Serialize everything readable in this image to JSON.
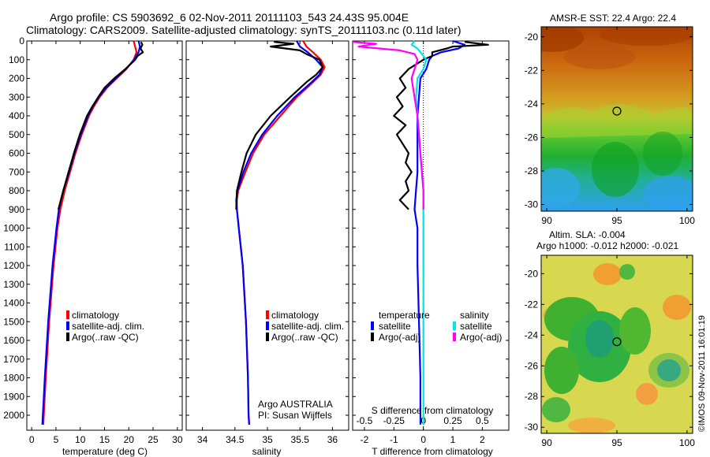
{
  "header": {
    "title_line1": "Argo profile: CS 5903692_6 02-Nov-2011 20111103_543 24.43S 95.004E",
    "title_line2": "Climatology: CARS2009. Satellite-adjusted climatology: synTS_20111103.nc (0.11d later)"
  },
  "footer": {
    "credit": "©IMOS 09-Nov-2011 16:01:19",
    "float_info": "Argo AUSTRALIA",
    "pi_info": "PI: Susan Wijffels"
  },
  "colors": {
    "climatology": "#ff0000",
    "satellite": "#0000ff",
    "argo": "#000000",
    "sal_satellite": "#00e5e5",
    "sal_argo": "#ff00ff"
  },
  "chart_data": [
    {
      "id": "temperature",
      "type": "line",
      "xlabel": "temperature (deg C)",
      "ylabel": "",
      "xlim": [
        -1,
        31
      ],
      "ylim": [
        2080,
        0
      ],
      "xticks": [
        "0",
        "5",
        "10",
        "15",
        "20",
        "25",
        "30"
      ],
      "xtick_values": [
        0,
        5,
        10,
        15,
        20,
        25,
        30
      ],
      "yticks": [
        0,
        100,
        200,
        300,
        400,
        500,
        600,
        700,
        800,
        900,
        1000,
        1100,
        1200,
        1300,
        1400,
        1500,
        1600,
        1700,
        1800,
        1900,
        2000
      ],
      "legend": {
        "placement": "lower-center",
        "entries": [
          "climatology",
          "satellite-adj. clim.",
          "Argo(..raw -QC)"
        ]
      },
      "series": [
        {
          "name": "climatology",
          "color": "#ff0000",
          "depth": [
            0,
            30,
            60,
            100,
            150,
            200,
            250,
            300,
            350,
            400,
            500,
            600,
            700,
            800,
            900,
            1000,
            1200,
            1500,
            1800,
            2000,
            2050
          ],
          "values": [
            21.0,
            21.3,
            21.6,
            21.0,
            19.5,
            17.5,
            15.5,
            14.0,
            12.8,
            11.8,
            10.3,
            9.0,
            7.9,
            6.8,
            5.9,
            5.3,
            4.5,
            3.6,
            2.9,
            2.5,
            2.4
          ]
        },
        {
          "name": "satellite-adj. clim.",
          "color": "#0000ff",
          "depth": [
            0,
            30,
            60,
            100,
            150,
            200,
            250,
            300,
            350,
            400,
            500,
            600,
            700,
            800,
            900,
            1000,
            1200,
            1500,
            1800,
            2000,
            2050
          ],
          "values": [
            22.0,
            22.3,
            22.0,
            21.1,
            19.4,
            17.3,
            15.3,
            13.8,
            12.6,
            11.6,
            10.1,
            8.8,
            7.7,
            6.5,
            5.6,
            5.1,
            4.3,
            3.4,
            2.7,
            2.3,
            2.2
          ]
        },
        {
          "name": "Argo(..raw -QC)",
          "color": "#000000",
          "depth": [
            5,
            20,
            40,
            60,
            80,
            100,
            150,
            200,
            250,
            300,
            350,
            400,
            500,
            600,
            700,
            800,
            900
          ],
          "values": [
            22.5,
            22.8,
            22.4,
            22.9,
            21.8,
            21.3,
            19.3,
            17.0,
            15.0,
            13.7,
            12.5,
            11.4,
            9.9,
            8.7,
            7.6,
            6.5,
            5.5
          ]
        }
      ]
    },
    {
      "id": "salinity",
      "type": "line",
      "xlabel": "salinity",
      "ylabel": "",
      "xlim": [
        33.75,
        36.25
      ],
      "ylim": [
        2080,
        0
      ],
      "xticks": [
        "34",
        "34.5",
        "35",
        "35.5",
        "36"
      ],
      "xtick_values": [
        34,
        34.5,
        35,
        35.5,
        36
      ],
      "legend": {
        "placement": "lower-center",
        "entries": [
          "climatology",
          "satellite-adj. clim.",
          "Argo(..raw -QC)"
        ]
      },
      "series": [
        {
          "name": "climatology",
          "color": "#ff0000",
          "depth": [
            0,
            30,
            60,
            100,
            140,
            180,
            220,
            300,
            400,
            500,
            600,
            700,
            800,
            850,
            900,
            1000,
            1200,
            1500,
            1800,
            2000,
            2050
          ],
          "values": [
            35.55,
            35.6,
            35.7,
            35.82,
            35.88,
            35.82,
            35.7,
            35.45,
            35.2,
            34.95,
            34.78,
            34.66,
            34.55,
            34.53,
            34.53,
            34.56,
            34.62,
            34.67,
            34.7,
            34.71,
            34.72
          ]
        },
        {
          "name": "satellite-adj. clim.",
          "color": "#0000ff",
          "depth": [
            0,
            30,
            60,
            100,
            140,
            180,
            220,
            300,
            400,
            500,
            600,
            700,
            800,
            850,
            900,
            1000,
            1200,
            1500,
            1800,
            2000,
            2050
          ],
          "values": [
            35.45,
            35.5,
            35.62,
            35.75,
            35.85,
            35.8,
            35.68,
            35.42,
            35.15,
            34.92,
            34.75,
            34.63,
            34.54,
            34.52,
            34.53,
            34.56,
            34.62,
            34.67,
            34.7,
            34.71,
            34.72
          ]
        },
        {
          "name": "Argo(..raw -QC)",
          "color": "#000000",
          "depth": [
            5,
            15,
            30,
            50,
            70,
            100,
            140,
            180,
            220,
            300,
            400,
            500,
            600,
            700,
            800,
            900
          ],
          "values": [
            35.1,
            35.4,
            35.05,
            35.5,
            35.6,
            35.8,
            35.85,
            35.75,
            35.6,
            35.35,
            35.05,
            34.82,
            34.68,
            34.6,
            34.53,
            34.52
          ]
        }
      ]
    },
    {
      "id": "difference",
      "type": "line",
      "xlabel": "T difference from climatology",
      "xlabel_top": "S difference from climatology",
      "ylabel": "",
      "xlim": [
        -2.4,
        2.9
      ],
      "ylim": [
        2080,
        0
      ],
      "xticks": [
        "-2",
        "-1",
        "0",
        "1",
        "2"
      ],
      "xtick_values": [
        -2,
        -1,
        0,
        1,
        2
      ],
      "s_ticks": [
        "-0.5",
        "-0.25",
        "0",
        "0.25",
        "0.5"
      ],
      "s_tick_values": [
        -2,
        -1,
        0,
        1,
        2
      ],
      "legend": {
        "placement": "lower-center",
        "temperature_header": "temperature",
        "salinity_header": "salinity",
        "entries": [
          "satellite",
          "Argo(-adj)",
          "satellite",
          "Argo(-adj)"
        ]
      },
      "series": [
        {
          "name": "satellite",
          "group": "temperature",
          "color": "#0000ff",
          "depth": [
            0,
            20,
            40,
            60,
            80,
            100,
            150,
            200,
            300,
            400,
            500,
            600,
            700,
            800,
            900,
            1000,
            1200,
            1500,
            1800,
            2000,
            2050
          ],
          "values": [
            1.0,
            1.4,
            1.2,
            0.6,
            0.3,
            0.2,
            0.1,
            -0.1,
            -0.15,
            -0.2,
            -0.2,
            -0.2,
            -0.2,
            -0.25,
            -0.3,
            -0.2,
            -0.2,
            -0.15,
            -0.1,
            -0.1,
            -0.1
          ]
        },
        {
          "name": "Argo(-adj)",
          "group": "temperature",
          "color": "#000000",
          "depth": [
            5,
            20,
            30,
            40,
            60,
            80,
            100,
            150,
            200,
            250,
            300,
            350,
            400,
            450,
            500,
            550,
            600,
            650,
            700,
            750,
            800,
            850,
            900
          ],
          "values": [
            1.4,
            2.2,
            1.0,
            0.8,
            0.3,
            0.3,
            0.0,
            -0.5,
            -0.8,
            -0.6,
            -0.9,
            -0.7,
            -1.0,
            -0.6,
            -0.9,
            -0.7,
            -0.5,
            -0.6,
            -0.4,
            -0.6,
            -0.5,
            -0.8,
            -0.5
          ]
        },
        {
          "name": "satellite",
          "group": "salinity",
          "color": "#00e5e5",
          "depth": [
            0,
            20,
            40,
            60,
            80,
            100,
            150,
            200,
            300,
            400,
            500,
            600,
            700,
            800,
            900,
            1000,
            1200,
            1500,
            1800,
            2000,
            2050
          ],
          "values": [
            -0.3,
            -0.4,
            -0.2,
            -0.1,
            0.0,
            0.1,
            0.0,
            -0.2,
            -0.25,
            -0.2,
            -0.15,
            -0.1,
            -0.05,
            0.0,
            0.0,
            0.0,
            0.0,
            0.0,
            0.0,
            0.0,
            0.0
          ]
        },
        {
          "name": "Argo(-adj)",
          "group": "salinity",
          "color": "#ff00ff",
          "depth": [
            5,
            15,
            30,
            50,
            70,
            100,
            150,
            200,
            300,
            400,
            500,
            600,
            700,
            800,
            900
          ],
          "values": [
            -2.4,
            -1.6,
            -2.2,
            -0.8,
            -0.3,
            -0.2,
            -0.3,
            -0.4,
            -0.3,
            -0.2,
            -0.15,
            -0.1,
            -0.05,
            0.0,
            0.0
          ]
        }
      ]
    },
    {
      "id": "sst-map",
      "type": "heatmap",
      "title": "AMSR-E SST: 22.4  Argo: 22.4",
      "xlim": [
        89.6,
        100.4
      ],
      "ylim": [
        -30.4,
        -19.4
      ],
      "xticks": [
        "90",
        "95",
        "100"
      ],
      "xtick_values": [
        90,
        95,
        100
      ],
      "yticks": [
        "-20",
        "-22",
        "-24",
        "-26",
        "-28",
        "-30"
      ],
      "ytick_values": [
        -20,
        -22,
        -24,
        -26,
        -28,
        -30
      ],
      "marker": {
        "lon": 95.0,
        "lat": -24.43
      }
    },
    {
      "id": "sla-map",
      "type": "heatmap",
      "title_line1": "Altim. SLA: -0.004",
      "title_line2": "Argo h1000: -0.012 h2000: -0.021",
      "xlim": [
        89.6,
        100.4
      ],
      "ylim": [
        -30.4,
        -18.8
      ],
      "xticks": [
        "90",
        "95",
        "100"
      ],
      "xtick_values": [
        90,
        95,
        100
      ],
      "yticks": [
        "-20",
        "-22",
        "-24",
        "-26",
        "-28",
        "-30"
      ],
      "ytick_values": [
        -20,
        -22,
        -24,
        -26,
        -28,
        -30
      ],
      "marker": {
        "lon": 95.0,
        "lat": -24.43
      }
    }
  ]
}
